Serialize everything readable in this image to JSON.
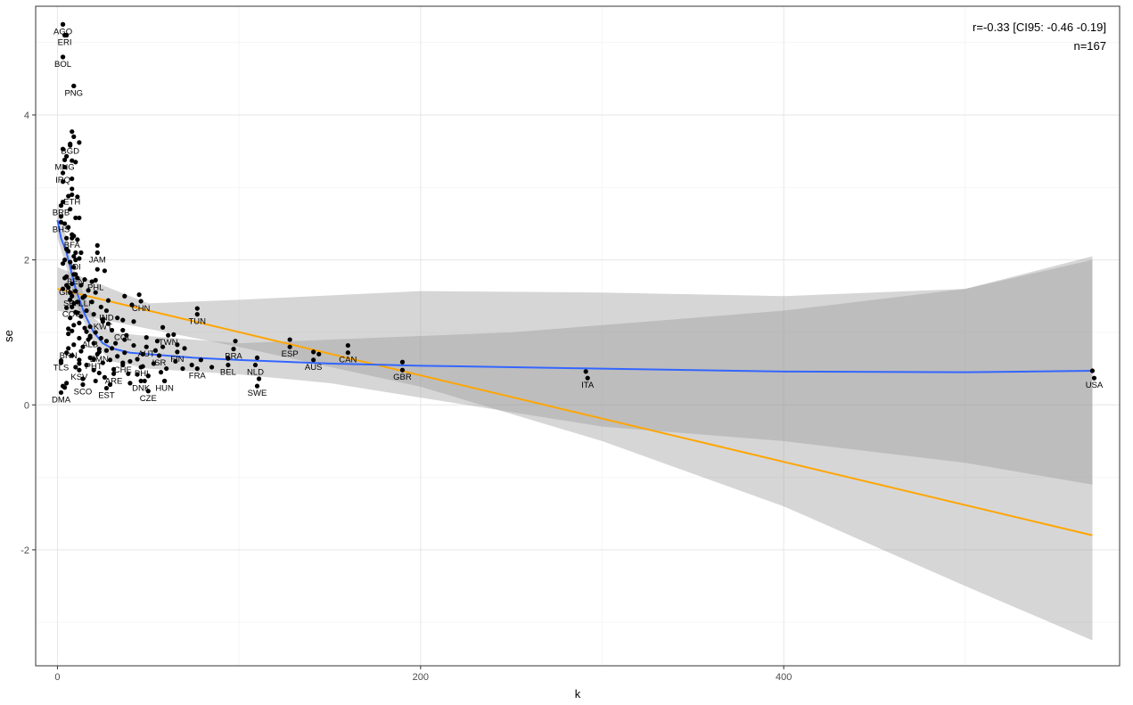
{
  "chart_data": {
    "type": "scatter",
    "title": "",
    "xlabel": "k",
    "ylabel": "se",
    "xlim": [
      -12,
      585
    ],
    "ylim": [
      -3.6,
      5.5
    ],
    "x_ticks": [
      0,
      200,
      400
    ],
    "y_ticks": [
      -2,
      0,
      2,
      4
    ],
    "x_tick_labels": [
      "0",
      "200",
      "400"
    ],
    "y_tick_labels": [
      "-2",
      "0",
      "2",
      "4"
    ],
    "grid": true,
    "annotations": [
      "r=-0.33 [CI95: -0.46 -0.19]",
      "n=167"
    ],
    "labeled_points": [
      {
        "label": "AGO",
        "x": 3,
        "y": 5.25
      },
      {
        "label": "ERI",
        "x": 4,
        "y": 5.1
      },
      {
        "label": "BOL",
        "x": 3,
        "y": 4.8
      },
      {
        "label": "PNG",
        "x": 9,
        "y": 4.4
      },
      {
        "label": "BGD",
        "x": 7,
        "y": 3.6
      },
      {
        "label": "MNG",
        "x": 4,
        "y": 3.38
      },
      {
        "label": "IRQ",
        "x": 3,
        "y": 3.2
      },
      {
        "label": "ETH",
        "x": 8,
        "y": 2.9
      },
      {
        "label": "BRB",
        "x": 2,
        "y": 2.75
      },
      {
        "label": "BHS",
        "x": 2,
        "y": 2.52
      },
      {
        "label": "BFA",
        "x": 8,
        "y": 2.3
      },
      {
        "label": "JAM",
        "x": 22,
        "y": 2.1
      },
      {
        "label": "IDI",
        "x": 10,
        "y": 2.0
      },
      {
        "label": "BEN",
        "x": 10,
        "y": 1.8
      },
      {
        "label": "PHL",
        "x": 21,
        "y": 1.72
      },
      {
        "label": "GIN",
        "x": 5,
        "y": 1.65
      },
      {
        "label": "SEN",
        "x": 8,
        "y": 1.5
      },
      {
        "label": "LLI",
        "x": 15,
        "y": 1.5
      },
      {
        "label": "CHN",
        "x": 46,
        "y": 1.43
      },
      {
        "label": "COG",
        "x": 8,
        "y": 1.35
      },
      {
        "label": "IND",
        "x": 27,
        "y": 1.3
      },
      {
        "label": "TUN",
        "x": 77,
        "y": 1.25
      },
      {
        "label": "KWT",
        "x": 25,
        "y": 1.18
      },
      {
        "label": "COL",
        "x": 36,
        "y": 1.03
      },
      {
        "label": "TWN",
        "x": 61,
        "y": 0.96
      },
      {
        "label": "ALB",
        "x": 18,
        "y": 0.93
      },
      {
        "label": "BRN",
        "x": 6,
        "y": 0.78
      },
      {
        "label": "AUT",
        "x": 49,
        "y": 0.8
      },
      {
        "label": "BRA",
        "x": 97,
        "y": 0.77
      },
      {
        "label": "ESP",
        "x": 128,
        "y": 0.8
      },
      {
        "label": "CAN",
        "x": 160,
        "y": 0.72
      },
      {
        "label": "FIN",
        "x": 66,
        "y": 0.73
      },
      {
        "label": "ISR",
        "x": 56,
        "y": 0.68
      },
      {
        "label": "EMN",
        "x": 23,
        "y": 0.73
      },
      {
        "label": "AUS",
        "x": 141,
        "y": 0.62
      },
      {
        "label": "TLS",
        "x": 2,
        "y": 0.61
      },
      {
        "label": "PHT",
        "x": 20,
        "y": 0.63
      },
      {
        "label": "CHE",
        "x": 36,
        "y": 0.58
      },
      {
        "label": "PHL",
        "x": 47,
        "y": 0.53
      },
      {
        "label": "BEL",
        "x": 94,
        "y": 0.55
      },
      {
        "label": "NLD",
        "x": 109,
        "y": 0.55
      },
      {
        "label": "FRA",
        "x": 77,
        "y": 0.5
      },
      {
        "label": "GBR",
        "x": 190,
        "y": 0.48
      },
      {
        "label": "KSV",
        "x": 12,
        "y": 0.48
      },
      {
        "label": "ARE",
        "x": 31,
        "y": 0.43
      },
      {
        "label": "ITA",
        "x": 292,
        "y": 0.37
      },
      {
        "label": "USA",
        "x": 571,
        "y": 0.37
      },
      {
        "label": "DNK",
        "x": 46,
        "y": 0.33
      },
      {
        "label": "HUN",
        "x": 59,
        "y": 0.33
      },
      {
        "label": "SCO",
        "x": 14,
        "y": 0.28
      },
      {
        "label": "SWE",
        "x": 110,
        "y": 0.26
      },
      {
        "label": "EST",
        "x": 27,
        "y": 0.23
      },
      {
        "label": "CZE",
        "x": 50,
        "y": 0.19
      },
      {
        "label": "DMA",
        "x": 2,
        "y": 0.17
      }
    ],
    "points": [
      [
        3,
        5.25
      ],
      [
        5,
        5.1
      ],
      [
        3,
        4.8
      ],
      [
        9,
        4.4
      ],
      [
        8,
        3.77
      ],
      [
        9,
        3.7
      ],
      [
        12,
        3.62
      ],
      [
        7,
        3.58
      ],
      [
        3,
        3.53
      ],
      [
        5,
        3.43
      ],
      [
        8,
        3.37
      ],
      [
        10,
        3.35
      ],
      [
        4,
        3.28
      ],
      [
        8,
        3.12
      ],
      [
        3,
        3.08
      ],
      [
        8,
        2.98
      ],
      [
        6,
        2.88
      ],
      [
        11,
        2.87
      ],
      [
        3,
        2.8
      ],
      [
        7,
        2.7
      ],
      [
        2,
        2.6
      ],
      [
        10,
        2.58
      ],
      [
        12,
        2.58
      ],
      [
        4,
        2.5
      ],
      [
        6,
        2.45
      ],
      [
        8,
        2.35
      ],
      [
        9,
        2.33
      ],
      [
        5,
        2.3
      ],
      [
        11,
        2.28
      ],
      [
        22,
        2.2
      ],
      [
        6,
        2.12
      ],
      [
        10,
        2.1
      ],
      [
        13,
        2.1
      ],
      [
        9,
        2.05
      ],
      [
        12,
        2.02
      ],
      [
        4,
        2.0
      ],
      [
        7,
        1.97
      ],
      [
        3,
        1.95
      ],
      [
        22,
        1.87
      ],
      [
        26,
        1.85
      ],
      [
        9,
        1.8
      ],
      [
        5,
        1.77
      ],
      [
        11,
        1.75
      ],
      [
        15,
        1.73
      ],
      [
        19,
        1.7
      ],
      [
        8,
        1.67
      ],
      [
        13,
        1.65
      ],
      [
        6,
        1.62
      ],
      [
        3,
        1.6
      ],
      [
        17,
        1.58
      ],
      [
        10,
        1.57
      ],
      [
        45,
        1.52
      ],
      [
        37,
        1.5
      ],
      [
        14,
        1.48
      ],
      [
        7,
        1.45
      ],
      [
        28,
        1.44
      ],
      [
        11,
        1.42
      ],
      [
        9,
        1.4
      ],
      [
        41,
        1.38
      ],
      [
        24,
        1.35
      ],
      [
        5,
        1.34
      ],
      [
        77,
        1.33
      ],
      [
        16,
        1.3
      ],
      [
        10,
        1.28
      ],
      [
        20,
        1.25
      ],
      [
        13,
        1.22
      ],
      [
        7,
        1.2
      ],
      [
        33,
        1.2
      ],
      [
        36,
        1.17
      ],
      [
        25,
        1.15
      ],
      [
        42,
        1.15
      ],
      [
        12,
        1.13
      ],
      [
        9,
        1.1
      ],
      [
        18,
        1.08
      ],
      [
        58,
        1.07
      ],
      [
        15,
        1.06
      ],
      [
        30,
        1.03
      ],
      [
        8,
        1.02
      ],
      [
        21,
        1.0
      ],
      [
        6,
        0.98
      ],
      [
        64,
        0.97
      ],
      [
        49,
        0.93
      ],
      [
        12,
        0.92
      ],
      [
        17,
        0.9
      ],
      [
        37,
        0.9
      ],
      [
        27,
        0.88
      ],
      [
        98,
        0.88
      ],
      [
        128,
        0.9
      ],
      [
        160,
        0.82
      ],
      [
        20,
        0.85
      ],
      [
        9,
        0.83
      ],
      [
        42,
        0.82
      ],
      [
        58,
        0.8
      ],
      [
        14,
        0.8
      ],
      [
        66,
        0.83
      ],
      [
        30,
        0.78
      ],
      [
        23,
        0.77
      ],
      [
        141,
        0.73
      ],
      [
        5,
        0.72
      ],
      [
        110,
        0.65
      ],
      [
        54,
        0.75
      ],
      [
        37,
        0.72
      ],
      [
        22,
        0.7
      ],
      [
        8,
        0.68
      ],
      [
        144,
        0.7
      ],
      [
        18,
        0.65
      ],
      [
        44,
        0.63
      ],
      [
        12,
        0.62
      ],
      [
        29,
        0.62
      ],
      [
        2,
        0.6
      ],
      [
        40,
        0.6
      ],
      [
        79,
        0.62
      ],
      [
        94,
        0.64
      ],
      [
        190,
        0.59
      ],
      [
        25,
        0.58
      ],
      [
        53,
        0.57
      ],
      [
        36,
        0.55
      ],
      [
        16,
        0.55
      ],
      [
        74,
        0.55
      ],
      [
        46,
        0.52
      ],
      [
        10,
        0.52
      ],
      [
        60,
        0.5
      ],
      [
        31,
        0.49
      ],
      [
        69,
        0.5
      ],
      [
        20,
        0.48
      ],
      [
        57,
        0.45
      ],
      [
        39,
        0.43
      ],
      [
        44,
        0.42
      ],
      [
        50,
        0.4
      ],
      [
        291,
        0.46
      ],
      [
        570,
        0.47
      ],
      [
        26,
        0.38
      ],
      [
        14,
        0.36
      ],
      [
        48,
        0.33
      ],
      [
        111,
        0.36
      ],
      [
        21,
        0.33
      ],
      [
        59,
        0.33
      ],
      [
        5,
        0.3
      ],
      [
        40,
        0.3
      ],
      [
        29,
        0.28
      ],
      [
        3,
        0.26
      ],
      [
        4,
        0.24
      ],
      [
        23,
        0.44
      ],
      [
        2,
        0.58
      ],
      [
        6,
        1.05
      ],
      [
        28,
        1.12
      ],
      [
        38,
        0.96
      ],
      [
        65,
        0.6
      ],
      [
        85,
        0.52
      ],
      [
        18,
        0.95
      ],
      [
        11,
        1.27
      ],
      [
        27,
        0.75
      ],
      [
        33,
        0.67
      ],
      [
        7,
        1.55
      ],
      [
        16,
        1.01
      ],
      [
        24,
        0.92
      ],
      [
        13,
        0.74
      ],
      [
        9,
        1.9
      ],
      [
        5,
        2.15
      ],
      [
        19,
        1.42
      ],
      [
        32,
        0.85
      ],
      [
        47,
        0.7
      ],
      [
        4,
        1.75
      ],
      [
        70,
        0.78
      ],
      [
        55,
        0.88
      ],
      [
        21,
        1.55
      ],
      [
        12,
        0.57
      ]
    ],
    "series": [
      {
        "type": "linear-fit",
        "color": "#FFA500",
        "band_color": "#d4d4d4",
        "x": [
          0,
          570
        ],
        "y": [
          1.6,
          -1.8
        ],
        "band_lo": [
          1.3,
          -3.25
        ],
        "band_hi": [
          1.9,
          2.05
        ],
        "band_x": [
          0,
          50,
          100,
          200,
          300,
          400,
          500,
          570
        ],
        "band_lo_y": [
          1.3,
          1.05,
          0.8,
          0.25,
          -0.5,
          -1.4,
          -2.5,
          -3.25
        ],
        "band_hi_y": [
          1.9,
          1.4,
          1.45,
          1.57,
          1.55,
          1.5,
          1.6,
          2.05
        ]
      },
      {
        "type": "smooth-fit",
        "color": "#3366FF",
        "band_color": "#bdbdbd",
        "x": [
          0,
          2,
          5,
          10,
          15,
          20,
          25,
          30,
          40,
          50,
          75,
          100,
          150,
          200,
          300,
          400,
          500,
          570
        ],
        "y": [
          2.55,
          2.3,
          2.1,
          1.6,
          1.25,
          1.0,
          0.85,
          0.78,
          0.72,
          0.7,
          0.65,
          0.62,
          0.57,
          0.54,
          0.5,
          0.46,
          0.45,
          0.47
        ],
        "band_x": [
          0,
          5,
          10,
          20,
          30,
          50,
          100,
          150,
          200,
          250,
          300,
          400,
          500,
          570
        ],
        "band_lo_y": [
          2.3,
          1.9,
          1.4,
          0.85,
          0.6,
          0.5,
          0.42,
          0.3,
          0.1,
          -0.1,
          -0.3,
          -0.5,
          -0.8,
          -1.1
        ],
        "band_hi_y": [
          2.8,
          2.3,
          1.8,
          1.2,
          1.0,
          0.95,
          0.85,
          0.9,
          0.95,
          1.0,
          1.1,
          1.3,
          1.6,
          2.0
        ]
      }
    ],
    "colors": {
      "points": "#000000",
      "linear": "#FFA500",
      "smooth": "#3366FF"
    }
  }
}
